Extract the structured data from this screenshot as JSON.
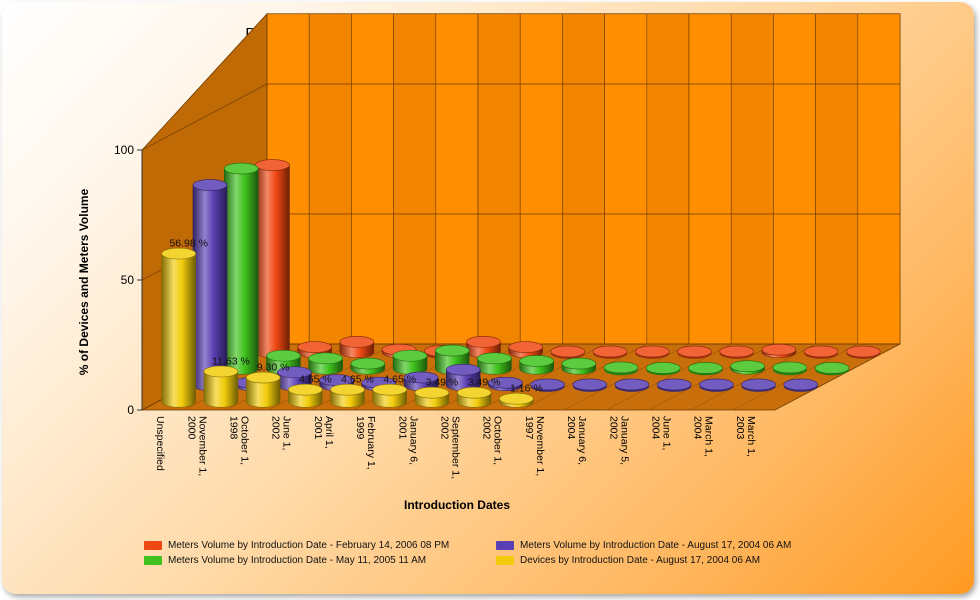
{
  "chart_data": {
    "type": "bar",
    "title": "Percent of Devices and Meters Volume by Devices Introduction Date",
    "xlabel": "Introduction Dates",
    "ylabel": "% of Devices and Meters Volume",
    "ylim": [
      0,
      100
    ],
    "yticks": [
      "0",
      "50",
      "100"
    ],
    "categories": [
      "Unspecified",
      "November 1, 2000",
      "October 1, 1998",
      "June 1, 2002",
      "April 1, 2001",
      "February 1, 1999",
      "January 6, 2001",
      "September 1, 2002",
      "October 1, 2002",
      "November 1, 1997",
      "January 6, 2004",
      "January 5, 2002",
      "June 1, 2004",
      "March 1, 2004",
      "March 1, 2003"
    ],
    "series": [
      {
        "name": "Devices by Introduction Date - August 17, 2004 06 AM",
        "color": "#f2cc0c",
        "values": [
          56.98,
          11.63,
          9.3,
          4.65,
          4.65,
          4.65,
          3.49,
          3.49,
          1.16,
          null,
          null,
          null,
          null,
          null,
          null
        ],
        "labels": [
          "56.98 %",
          "11.63 %",
          "9.30 %",
          "4.65 %",
          "4.65 %",
          "4.65 %",
          "3.49 %",
          "3.49 %",
          "1.16 %",
          "",
          "",
          "",
          "",
          "",
          ""
        ]
      },
      {
        "name": "Meters Volume by Introduction Date - August 17, 2004 06 AM",
        "color": "#5a3fb4",
        "values": [
          77,
          1,
          5,
          2,
          1,
          3,
          6,
          1,
          0.3,
          0.3,
          0.3,
          0.3,
          0.3,
          0.3,
          0.3
        ]
      },
      {
        "name": "Meters Volume by Introduction Date - May 11, 2005 11 AM",
        "color": "#3fc21d",
        "values": [
          77,
          5,
          4,
          2,
          5,
          7,
          4,
          3,
          2,
          0.5,
          0.3,
          0.3,
          1,
          0.5,
          0.3
        ]
      },
      {
        "name": "Meters Volume by Introduction Date - February 14, 2006 08 PM",
        "color": "#f04812",
        "values": [
          72,
          2,
          4,
          1,
          0.5,
          4,
          2,
          0.3,
          0.3,
          0.3,
          0.3,
          0.3,
          1,
          0.3,
          0.3
        ]
      }
    ],
    "legend": [
      "Meters Volume by Introduction Date - February 14, 2006 08 PM",
      "Meters Volume by Introduction Date - August 17, 2004 06 AM",
      "Meters Volume by Introduction Date - May 11, 2005 11 AM",
      "Devices by Introduction Date - August 17, 2004 06 AM"
    ],
    "legend_position": "bottom"
  },
  "colors": {
    "wall": "#ff8c00",
    "floor": "#c86e0a",
    "side_wall": "#c06a05",
    "grid": "#6b3b00"
  }
}
